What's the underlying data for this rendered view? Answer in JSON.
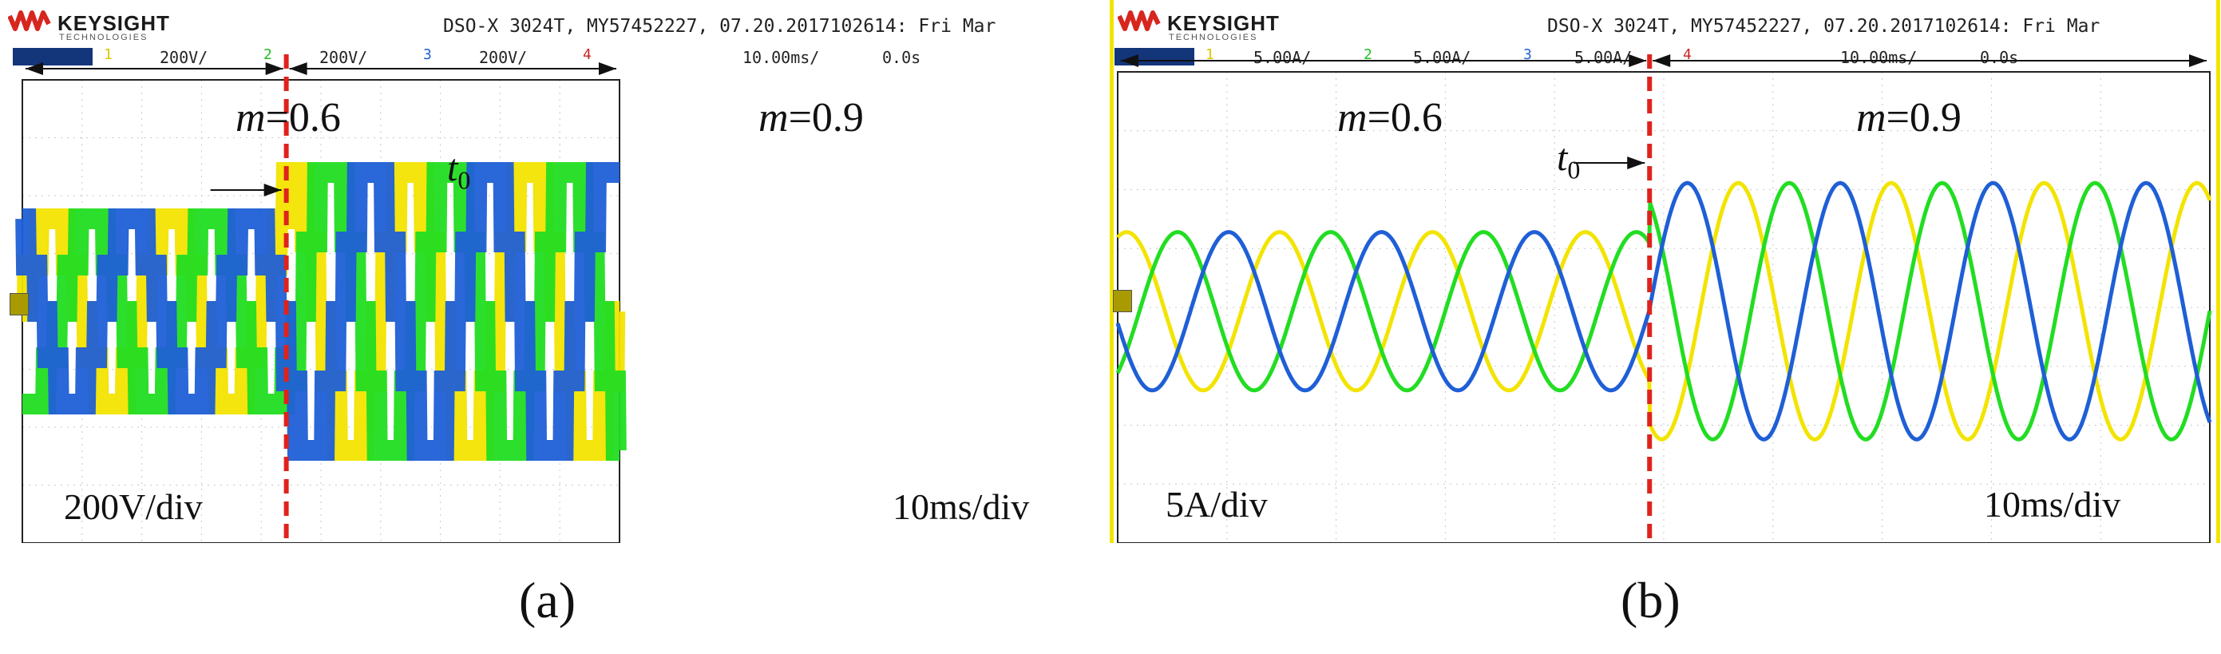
{
  "panels": [
    {
      "id": "a",
      "brand": "KEYSIGHT",
      "brand_sub": "TECHNOLOGIES",
      "scope_info": "DSO-X 3024T, MY57452227, 07.20.2017102614: Fri Mar",
      "ch1_num": "1",
      "ch1_scale": "200V/",
      "ch2_num": "2",
      "ch2_scale": "200V/",
      "ch3_num": "3",
      "ch3_scale": "200V/",
      "ch4_num": "4",
      "timebase": "10.00ms/",
      "delay": "0.0s",
      "m_left": "=0.6",
      "m_right": "=0.9",
      "m_symbol": "m",
      "t0_label": "t",
      "t0_sub": "0",
      "y_scale": "200V/div",
      "x_scale": "10ms/div",
      "label": "(a)"
    },
    {
      "id": "b",
      "brand": "KEYSIGHT",
      "brand_sub": "TECHNOLOGIES",
      "scope_info": "DSO-X 3024T, MY57452227, 07.20.2017102614: Fri Mar",
      "ch1_num": "1",
      "ch1_scale": "5.00A/",
      "ch2_num": "2",
      "ch2_scale": "5.00A/",
      "ch3_num": "3",
      "ch3_scale": "5.00A/",
      "ch4_num": "4",
      "timebase": "10.00ms/",
      "delay": "0.0s",
      "m_left": "=0.6",
      "m_right": "=0.9",
      "m_symbol": "m",
      "t0_label": "t",
      "t0_sub": "0",
      "y_scale": "5A/div",
      "x_scale": "10ms/div",
      "label": "(b)"
    }
  ],
  "colors": {
    "phase_a": "#f2e400",
    "phase_b": "#22dd22",
    "phase_c": "#1f5fd6",
    "marker": "#e0221c",
    "brand_red": "#d7261e"
  },
  "chart_data": [
    {
      "type": "line",
      "panel": "a",
      "x_unit": "ms",
      "xlim": [
        0,
        100
      ],
      "y_unit": "V",
      "ylim": [
        -400,
        600
      ],
      "t0_ms": 44.2,
      "series": [
        {
          "phase": "A",
          "color": "yellow",
          "amplitude_before": 200,
          "amplitude_after": 300,
          "period_ms": 20
        },
        {
          "phase": "B",
          "color": "green",
          "amplitude_before": 200,
          "amplitude_after": 300,
          "period_ms": 20
        },
        {
          "phase": "C",
          "color": "blue",
          "amplitude_before": 200,
          "amplitude_after": 300,
          "period_ms": 20
        }
      ]
    },
    {
      "type": "line",
      "panel": "b",
      "x_unit": "ms",
      "xlim": [
        0,
        100
      ],
      "y_unit": "A",
      "ylim": [
        -10,
        15
      ],
      "t0_ms": 48.7,
      "series": [
        {
          "phase": "A",
          "color": "yellow",
          "amplitude_before": 4.2,
          "amplitude_after": 6.8,
          "period_ms": 14
        },
        {
          "phase": "B",
          "color": "green",
          "amplitude_before": 4.2,
          "amplitude_after": 6.8,
          "period_ms": 14
        },
        {
          "phase": "C",
          "color": "blue",
          "amplitude_before": 4.2,
          "amplitude_after": 6.8,
          "period_ms": 14
        }
      ]
    }
  ]
}
